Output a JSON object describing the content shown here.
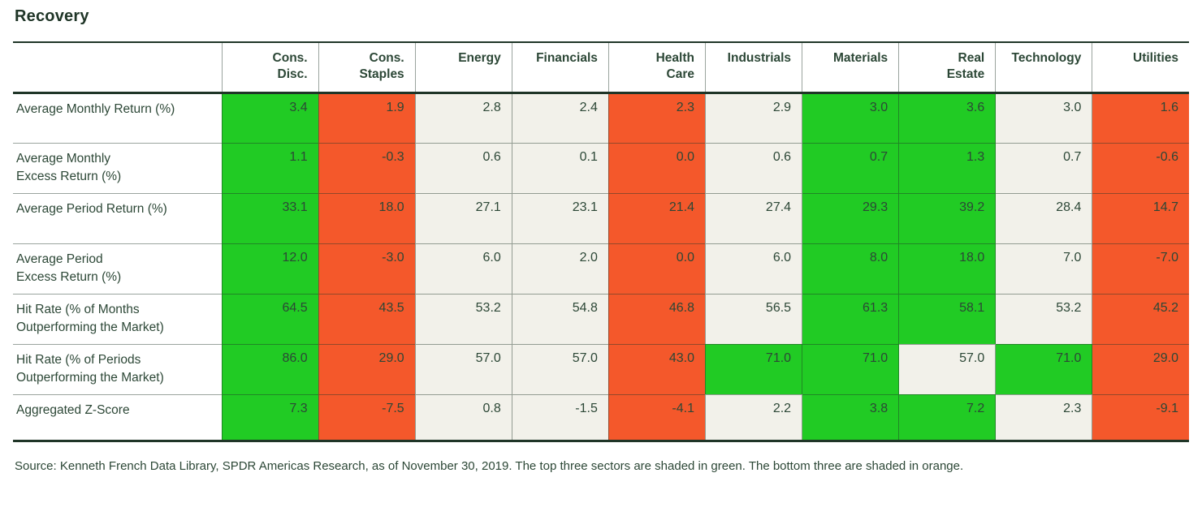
{
  "page": {
    "title": "Recovery"
  },
  "table": {
    "corner_label": "",
    "columns": [
      "Cons.\nDisc.",
      "Cons.\nStaples",
      "Energy",
      "Financials",
      "Health\nCare",
      "Industrials",
      "Materials",
      "Real\nEstate",
      "Technology",
      "Utilities"
    ],
    "rows": [
      {
        "label": "Average Monthly Return (%)",
        "cells": [
          {
            "v": "3.4",
            "tone": "green"
          },
          {
            "v": "1.9",
            "tone": "orange"
          },
          {
            "v": "2.8",
            "tone": "neutral"
          },
          {
            "v": "2.4",
            "tone": "neutral"
          },
          {
            "v": "2.3",
            "tone": "orange"
          },
          {
            "v": "2.9",
            "tone": "neutral"
          },
          {
            "v": "3.0",
            "tone": "green"
          },
          {
            "v": "3.6",
            "tone": "green"
          },
          {
            "v": "3.0",
            "tone": "neutral"
          },
          {
            "v": "1.6",
            "tone": "orange"
          }
        ]
      },
      {
        "label": "Average Monthly\nExcess Return (%)",
        "cells": [
          {
            "v": "1.1",
            "tone": "green"
          },
          {
            "v": "-0.3",
            "tone": "orange"
          },
          {
            "v": "0.6",
            "tone": "neutral"
          },
          {
            "v": "0.1",
            "tone": "neutral"
          },
          {
            "v": "0.0",
            "tone": "orange"
          },
          {
            "v": "0.6",
            "tone": "neutral"
          },
          {
            "v": "0.7",
            "tone": "green"
          },
          {
            "v": "1.3",
            "tone": "green"
          },
          {
            "v": "0.7",
            "tone": "neutral"
          },
          {
            "v": "-0.6",
            "tone": "orange"
          }
        ]
      },
      {
        "label": "Average Period Return (%)",
        "cells": [
          {
            "v": "33.1",
            "tone": "green"
          },
          {
            "v": "18.0",
            "tone": "orange"
          },
          {
            "v": "27.1",
            "tone": "neutral"
          },
          {
            "v": "23.1",
            "tone": "neutral"
          },
          {
            "v": "21.4",
            "tone": "orange"
          },
          {
            "v": "27.4",
            "tone": "neutral"
          },
          {
            "v": "29.3",
            "tone": "green"
          },
          {
            "v": "39.2",
            "tone": "green"
          },
          {
            "v": "28.4",
            "tone": "neutral"
          },
          {
            "v": "14.7",
            "tone": "orange"
          }
        ]
      },
      {
        "label": "Average Period\nExcess Return (%)",
        "cells": [
          {
            "v": "12.0",
            "tone": "green"
          },
          {
            "v": "-3.0",
            "tone": "orange"
          },
          {
            "v": "6.0",
            "tone": "neutral"
          },
          {
            "v": "2.0",
            "tone": "neutral"
          },
          {
            "v": "0.0",
            "tone": "orange"
          },
          {
            "v": "6.0",
            "tone": "neutral"
          },
          {
            "v": "8.0",
            "tone": "green"
          },
          {
            "v": "18.0",
            "tone": "green"
          },
          {
            "v": "7.0",
            "tone": "neutral"
          },
          {
            "v": "-7.0",
            "tone": "orange"
          }
        ]
      },
      {
        "label": "Hit Rate (% of Months\nOutperforming the Market)",
        "cells": [
          {
            "v": "64.5",
            "tone": "green"
          },
          {
            "v": "43.5",
            "tone": "orange"
          },
          {
            "v": "53.2",
            "tone": "neutral"
          },
          {
            "v": "54.8",
            "tone": "neutral"
          },
          {
            "v": "46.8",
            "tone": "orange"
          },
          {
            "v": "56.5",
            "tone": "neutral"
          },
          {
            "v": "61.3",
            "tone": "green"
          },
          {
            "v": "58.1",
            "tone": "green"
          },
          {
            "v": "53.2",
            "tone": "neutral"
          },
          {
            "v": "45.2",
            "tone": "orange"
          }
        ]
      },
      {
        "label": "Hit Rate (% of Periods\nOutperforming the Market)",
        "cells": [
          {
            "v": "86.0",
            "tone": "green"
          },
          {
            "v": "29.0",
            "tone": "orange"
          },
          {
            "v": "57.0",
            "tone": "neutral"
          },
          {
            "v": "57.0",
            "tone": "neutral"
          },
          {
            "v": "43.0",
            "tone": "orange"
          },
          {
            "v": "71.0",
            "tone": "green"
          },
          {
            "v": "71.0",
            "tone": "green"
          },
          {
            "v": "57.0",
            "tone": "neutral"
          },
          {
            "v": "71.0",
            "tone": "green"
          },
          {
            "v": "29.0",
            "tone": "orange"
          }
        ]
      },
      {
        "label": "Aggregated Z-Score",
        "cells": [
          {
            "v": "7.3",
            "tone": "green"
          },
          {
            "v": "-7.5",
            "tone": "orange"
          },
          {
            "v": "0.8",
            "tone": "neutral"
          },
          {
            "v": "-1.5",
            "tone": "neutral"
          },
          {
            "v": "-4.1",
            "tone": "orange"
          },
          {
            "v": "2.2",
            "tone": "neutral"
          },
          {
            "v": "3.8",
            "tone": "green"
          },
          {
            "v": "7.2",
            "tone": "green"
          },
          {
            "v": "2.3",
            "tone": "neutral"
          },
          {
            "v": "-9.1",
            "tone": "orange"
          }
        ]
      }
    ]
  },
  "footer": {
    "source": "Source: Kenneth French Data Library, SPDR Americas Research, as of November 30, 2019. The top three sectors are shaded in green. The bottom three are shaded in orange."
  },
  "colors": {
    "green": "#21cb24",
    "orange": "#f4582b",
    "neutral": "#f2f1ea",
    "dark_border": "#1f3527",
    "text": "#2c4736"
  }
}
